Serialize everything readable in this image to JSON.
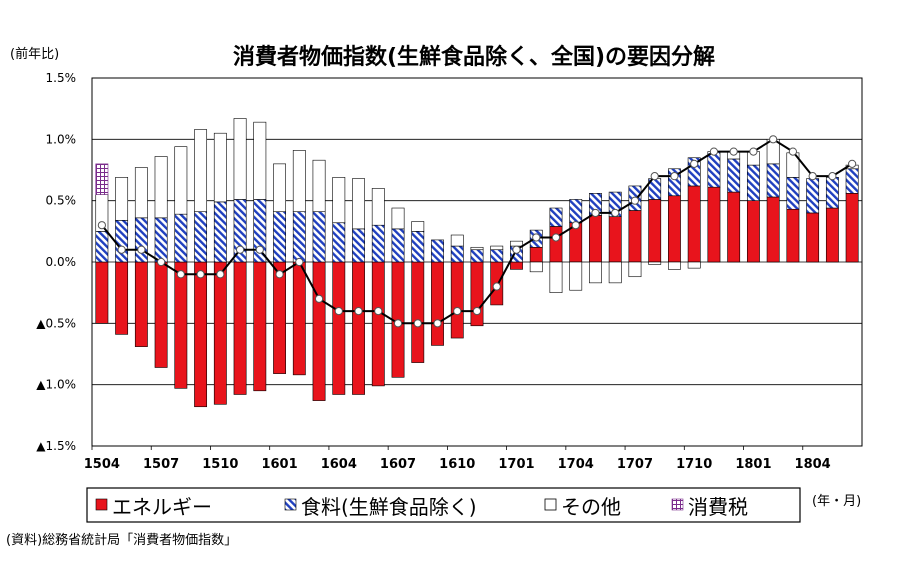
{
  "chart_data": {
    "type": "bar",
    "title": "消費者物価指数(生鮮食品除く、全国)の要因分解",
    "ylabel": "(前年比)",
    "xlabel": "(年・月)",
    "source": "(資料)総務省統計局「消費者物価指数」",
    "ylim": [
      -1.5,
      1.5
    ],
    "y_ticks": [
      "1.5%",
      "1.0%",
      "0.5%",
      "0.0%",
      "▲0.5%",
      "▲1.0%",
      "▲1.5%"
    ],
    "x_tick_labels": [
      "1504",
      "1507",
      "1510",
      "1601",
      "1604",
      "1607",
      "1610",
      "1701",
      "1704",
      "1707",
      "1710",
      "1801",
      "1804"
    ],
    "categories": [
      "1504",
      "1505",
      "1506",
      "1507",
      "1508",
      "1509",
      "1510",
      "1511",
      "1512",
      "1601",
      "1602",
      "1603",
      "1604",
      "1605",
      "1606",
      "1607",
      "1608",
      "1609",
      "1610",
      "1611",
      "1612",
      "1701",
      "1702",
      "1703",
      "1704",
      "1705",
      "1706",
      "1707",
      "1708",
      "1709",
      "1710",
      "1711",
      "1712",
      "1801",
      "1802",
      "1803",
      "1804",
      "1805",
      "1806"
    ],
    "series": [
      {
        "name": "エネルギー",
        "color": "#e8141c",
        "values": [
          -0.5,
          -0.59,
          -0.69,
          -0.86,
          -1.03,
          -1.18,
          -1.16,
          -1.08,
          -1.05,
          -0.91,
          -0.92,
          -1.13,
          -1.08,
          -1.08,
          -1.01,
          -0.94,
          -0.82,
          -0.68,
          -0.62,
          -0.52,
          -0.35,
          -0.06,
          0.12,
          0.29,
          0.32,
          0.38,
          0.37,
          0.42,
          0.51,
          0.54,
          0.62,
          0.61,
          0.57,
          0.5,
          0.53,
          0.43,
          0.4,
          0.44,
          0.56
        ]
      },
      {
        "name": "食料(生鮮食品除く)",
        "color": "#1f3fbf",
        "values": [
          0.25,
          0.34,
          0.36,
          0.36,
          0.39,
          0.41,
          0.49,
          0.51,
          0.51,
          0.41,
          0.41,
          0.41,
          0.32,
          0.27,
          0.3,
          0.27,
          0.25,
          0.18,
          0.13,
          0.1,
          0.1,
          0.13,
          0.14,
          0.15,
          0.19,
          0.18,
          0.2,
          0.2,
          0.17,
          0.22,
          0.23,
          0.29,
          0.27,
          0.29,
          0.27,
          0.26,
          0.28,
          0.25,
          0.2
        ]
      },
      {
        "name": "その他",
        "color": "#ffffff",
        "values": [
          0.3,
          0.35,
          0.41,
          0.5,
          0.55,
          0.67,
          0.56,
          0.66,
          0.63,
          0.39,
          0.5,
          0.42,
          0.37,
          0.41,
          0.3,
          0.17,
          0.08,
          0.0,
          0.09,
          0.02,
          0.03,
          0.04,
          -0.08,
          -0.25,
          -0.23,
          -0.17,
          -0.17,
          -0.12,
          -0.02,
          -0.06,
          -0.05,
          0.0,
          0.06,
          0.11,
          0.2,
          0.2,
          0.0,
          0.0,
          0.03
        ]
      },
      {
        "name": "消費税",
        "color": "#7b2c8c",
        "values": [
          0.25,
          0,
          0,
          0,
          0,
          0,
          0,
          0,
          0,
          0,
          0,
          0,
          0,
          0,
          0,
          0,
          0,
          0,
          0,
          0,
          0,
          0,
          0,
          0,
          0,
          0,
          0,
          0,
          0,
          0,
          0,
          0,
          0,
          0,
          0,
          0,
          0,
          0,
          0
        ]
      },
      {
        "name": "total",
        "type": "line",
        "color": "#000000",
        "values": [
          0.3,
          0.1,
          0.1,
          0.0,
          -0.1,
          -0.1,
          -0.1,
          0.1,
          0.1,
          -0.1,
          0.0,
          -0.3,
          -0.4,
          -0.4,
          -0.4,
          -0.5,
          -0.5,
          -0.5,
          -0.4,
          -0.4,
          -0.2,
          0.1,
          0.2,
          0.2,
          0.3,
          0.4,
          0.4,
          0.5,
          0.7,
          0.7,
          0.8,
          0.9,
          0.9,
          0.9,
          1.0,
          0.9,
          0.7,
          0.7,
          0.8
        ]
      }
    ],
    "legend": {
      "position": "bottom",
      "items": [
        "エネルギー",
        "食料(生鮮食品除く)",
        "その他",
        "消費税"
      ]
    },
    "grid": true
  }
}
